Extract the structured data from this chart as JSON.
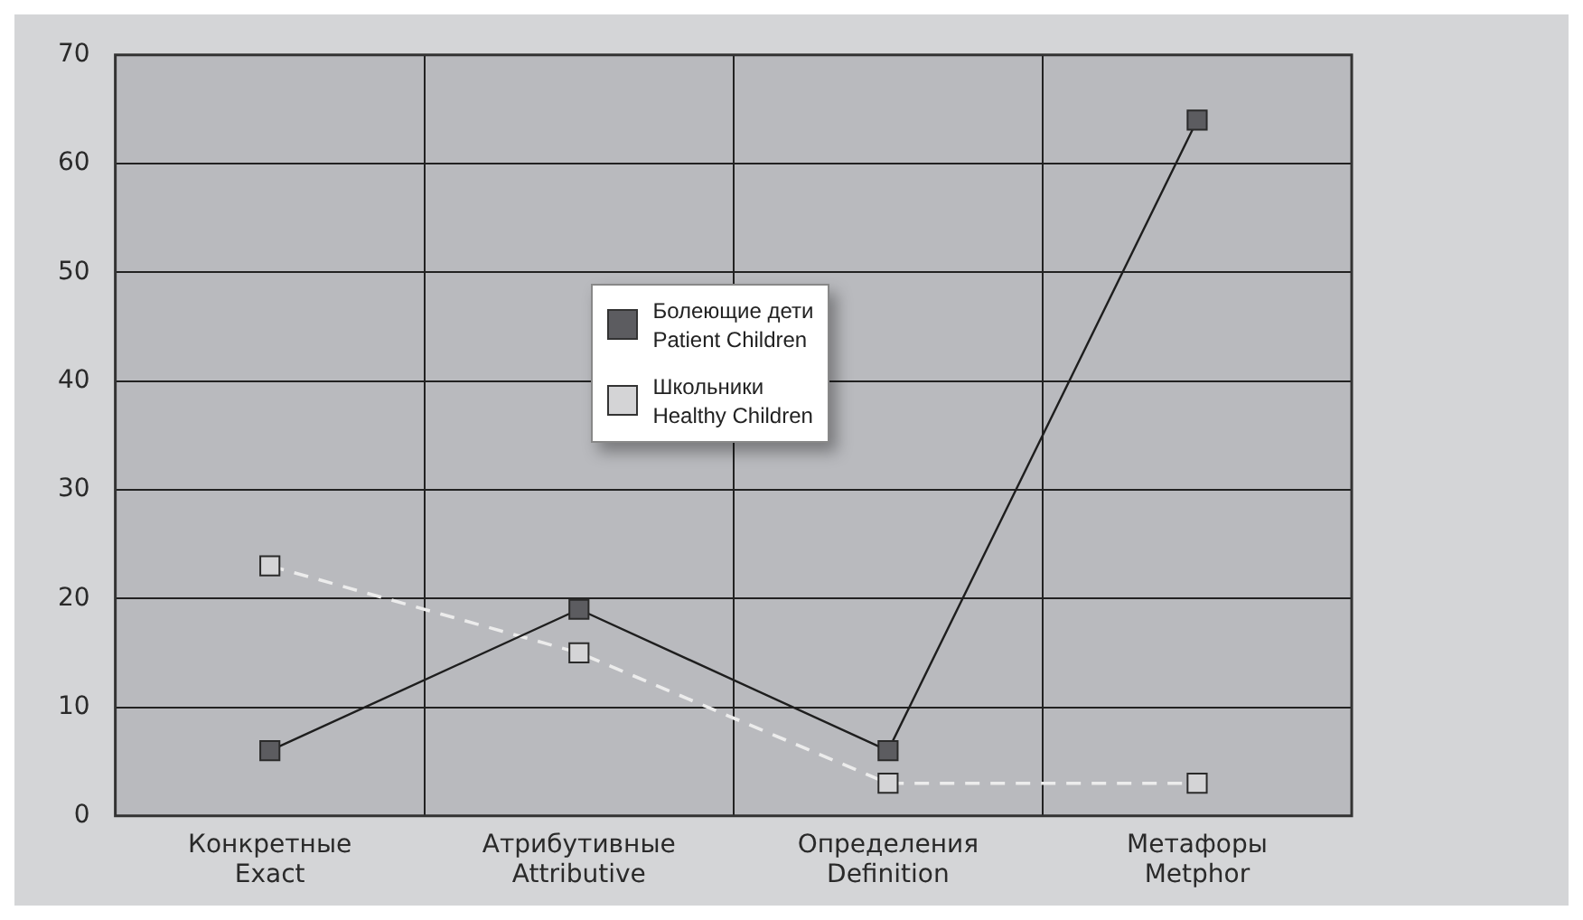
{
  "chart_data": {
    "type": "line",
    "categories": [
      "Конкретные\nExact",
      "Атрибутивные\nAttributive",
      "Определения\nDefinition",
      "Метафоры\nMetphor"
    ],
    "series": [
      {
        "name": "Болеющие дети\nPatient Children",
        "color": "#5c5c60",
        "values": [
          6,
          19,
          6,
          64
        ],
        "line_style": "solid"
      },
      {
        "name": "Школьники\nHealthy Children",
        "color": "#d4d4d6",
        "values": [
          23,
          15,
          3,
          3
        ],
        "line_style": "dashed"
      }
    ],
    "ylim": [
      0,
      70
    ],
    "yticks": [
      0,
      10,
      20,
      30,
      40,
      50,
      60,
      70
    ],
    "grid": true,
    "legend": "top",
    "marker": "square"
  }
}
